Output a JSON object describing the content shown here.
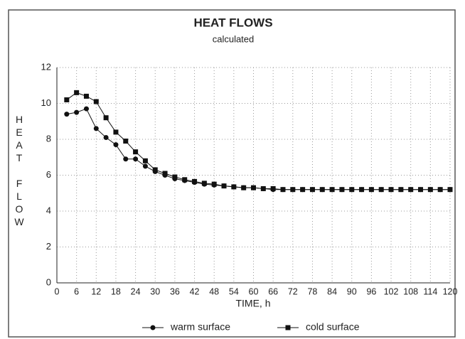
{
  "chart_data": {
    "type": "line",
    "title": "HEAT FLOWS",
    "subtitle": "calculated",
    "x_label": "TIME, h",
    "y_label": "HEAT FLOW",
    "x": [
      3,
      6,
      9,
      12,
      15,
      18,
      21,
      24,
      27,
      30,
      33,
      36,
      39,
      42,
      45,
      48,
      51,
      54,
      57,
      60,
      63,
      66,
      69,
      72,
      75,
      78,
      81,
      84,
      87,
      90,
      93,
      96,
      99,
      102,
      105,
      108,
      111,
      114,
      117,
      120
    ],
    "series": [
      {
        "name": "warm surface",
        "color": "#111",
        "marker": "circle",
        "values": [
          9.4,
          9.5,
          9.7,
          8.6,
          8.1,
          7.7,
          6.9,
          6.9,
          6.5,
          6.2,
          6.0,
          5.8,
          5.7,
          5.6,
          5.5,
          5.45,
          5.4,
          5.35,
          5.3,
          5.3,
          5.25,
          5.2,
          5.2,
          5.2,
          5.2,
          5.2,
          5.2,
          5.2,
          5.2,
          5.2,
          5.2,
          5.2,
          5.2,
          5.2,
          5.2,
          5.2,
          5.2,
          5.2,
          5.2,
          5.2
        ]
      },
      {
        "name": "cold surface",
        "color": "#111",
        "marker": "square",
        "values": [
          10.2,
          10.6,
          10.4,
          10.1,
          9.2,
          8.4,
          7.9,
          7.3,
          6.8,
          6.3,
          6.1,
          5.9,
          5.75,
          5.65,
          5.55,
          5.5,
          5.4,
          5.35,
          5.3,
          5.3,
          5.25,
          5.25,
          5.2,
          5.2,
          5.2,
          5.2,
          5.2,
          5.2,
          5.2,
          5.2,
          5.2,
          5.2,
          5.2,
          5.2,
          5.2,
          5.2,
          5.2,
          5.2,
          5.2,
          5.2
        ]
      }
    ],
    "xlim": [
      0,
      120
    ],
    "xticks": [
      0,
      6,
      12,
      18,
      24,
      30,
      36,
      42,
      48,
      54,
      60,
      66,
      72,
      78,
      84,
      90,
      96,
      102,
      108,
      114,
      120
    ],
    "ylim": [
      0,
      12
    ],
    "yticks": [
      0,
      2,
      4,
      6,
      8,
      10,
      12
    ],
    "grid": true,
    "legend": "bottom"
  }
}
